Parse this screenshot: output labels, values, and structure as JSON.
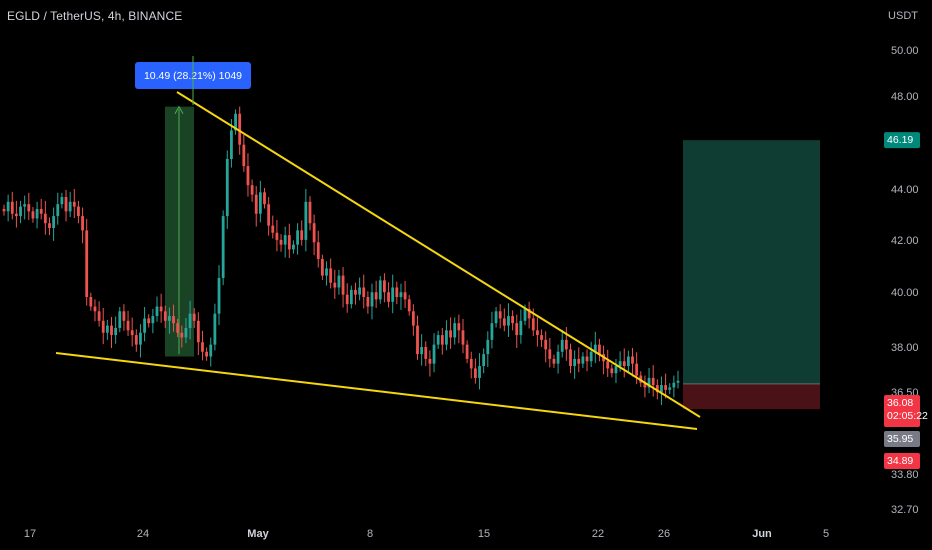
{
  "header": {
    "title": "EGLD / TetherUS, 4h, BINANCE",
    "currency": "USDT"
  },
  "colors": {
    "background": "#000000",
    "up": "#26a69a",
    "down": "#ef5350",
    "trendline": "#f5d60f",
    "target_zone": "#0f3d33",
    "stop_zone": "#4a1216",
    "measure_box": "#1e4d2b",
    "measure_label": "#2962ff",
    "last_price": "#f23645"
  },
  "chart_data": {
    "type": "candlestick",
    "interval": "4h",
    "y_axis": {
      "ticks": [
        "50.00",
        "48.00",
        "46.19",
        "44.00",
        "42.00",
        "40.00",
        "38.00",
        "36.50",
        "36.08",
        "35.95",
        "34.89",
        "33.80",
        "32.70"
      ],
      "ylim": [
        32.3,
        51.5
      ]
    },
    "x_axis": {
      "tick_labels": [
        "17",
        "24",
        "May",
        "8",
        "15",
        "22",
        "26",
        "Jun",
        "5"
      ]
    },
    "price_labels": {
      "target": "46.19",
      "last": "36.08",
      "countdown": "02:05:22",
      "entry": "35.95",
      "stop": "34.89"
    },
    "measure_label": "10.49 (28.21%) 1049",
    "trendlines": [
      {
        "name": "upper-resistance",
        "from": {
          "x": "Apr 26",
          "y": 48.0
        },
        "to": {
          "x": "May 27",
          "y": 36.2
        }
      },
      {
        "name": "lower-support",
        "from": {
          "x": "Apr 18",
          "y": 37.8
        },
        "to": {
          "x": "May 27",
          "y": 35.5
        }
      }
    ],
    "position": {
      "type": "long",
      "entry": 35.95,
      "target": 46.19,
      "stop": 34.89
    },
    "candles_close": [
      43.2,
      43.6,
      43.1,
      43.0,
      43.4,
      43.5,
      43.2,
      42.9,
      43.3,
      43.1,
      42.7,
      42.5,
      43.0,
      43.5,
      43.8,
      43.2,
      43.6,
      43.4,
      43.0,
      42.4,
      39.6,
      39.2,
      39.0,
      38.6,
      38.1,
      38.4,
      38.0,
      38.3,
      39.0,
      38.6,
      38.2,
      38.0,
      37.6,
      38.1,
      38.7,
      38.5,
      38.8,
      39.2,
      39.0,
      38.6,
      38.8,
      38.5,
      38.1,
      37.9,
      38.3,
      38.9,
      38.6,
      37.7,
      37.3,
      37.1,
      37.6,
      38.9,
      40.4,
      43.0,
      45.4,
      46.6,
      47.3,
      46.0,
      45.1,
      44.3,
      43.9,
      43.1,
      44.0,
      43.5,
      42.6,
      42.3,
      42.0,
      41.8,
      42.2,
      41.6,
      41.8,
      42.4,
      42.0,
      43.6,
      42.7,
      41.9,
      41.2,
      40.5,
      40.8,
      40.2,
      40.0,
      40.5,
      39.7,
      39.3,
      39.9,
      39.7,
      40.0,
      39.6,
      39.2,
      39.8,
      39.5,
      40.3,
      39.8,
      39.4,
      40.0,
      39.6,
      39.8,
      39.5,
      39.0,
      38.4,
      37.2,
      37.5,
      37.0,
      36.8,
      37.6,
      38.0,
      37.6,
      38.2,
      37.9,
      38.5,
      38.2,
      37.6,
      37.0,
      36.6,
      36.2,
      36.7,
      37.2,
      37.8,
      38.5,
      39.0,
      38.7,
      38.4,
      38.8,
      38.5,
      38.0,
      38.6,
      39.1,
      38.7,
      38.2,
      38.0,
      37.8,
      37.4,
      37.0,
      36.8,
      37.3,
      37.8,
      37.4,
      36.7,
      37.0,
      36.8,
      37.1,
      36.9,
      37.3,
      37.6,
      37.2,
      36.9,
      36.6,
      36.4,
      36.7,
      36.9,
      36.7,
      37.1,
      36.8,
      36.3,
      36.0,
      35.8,
      36.2,
      35.9,
      35.6,
      35.9,
      35.7,
      35.8,
      36.0,
      36.08
    ]
  }
}
